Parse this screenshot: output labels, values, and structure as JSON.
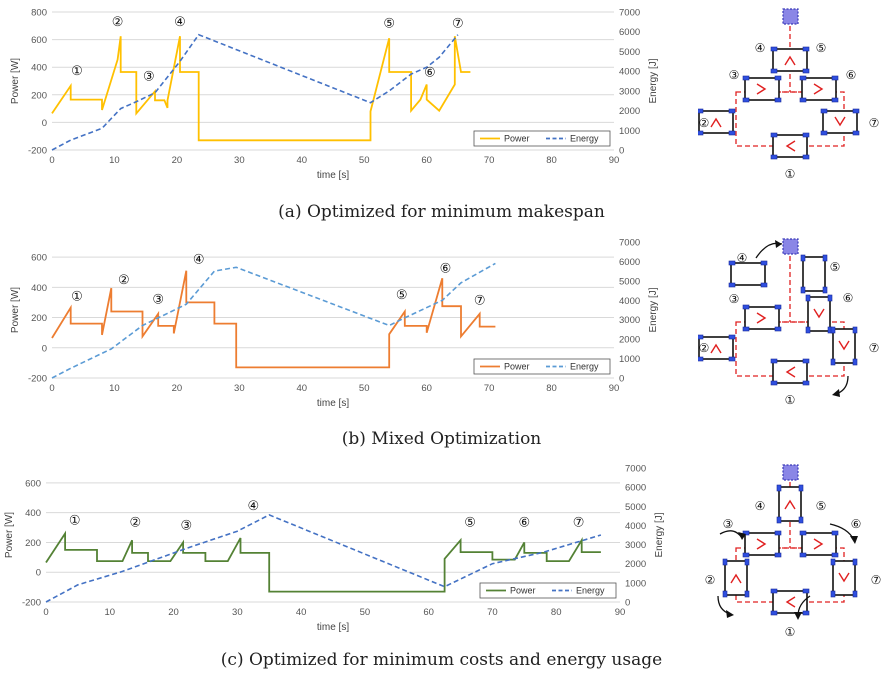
{
  "chart_data": [
    {
      "type": "line",
      "caption": "(a) Optimized for minimum makespan",
      "xlabel": "time [s]",
      "ylabel": "Power [W]",
      "y2label": "Energy [J]",
      "xlim": [
        0,
        90
      ],
      "xticks": [
        0,
        10,
        20,
        30,
        40,
        50,
        60,
        70,
        80,
        90
      ],
      "ylim": [
        -200,
        800
      ],
      "yticks": [
        -200,
        0,
        200,
        400,
        600,
        800
      ],
      "y2lim": [
        0,
        7000
      ],
      "y2ticks": [
        0,
        1000,
        2000,
        3000,
        4000,
        5000,
        6000,
        7000
      ],
      "grid": "horizontal",
      "legend": "bottom-right",
      "series": [
        {
          "name": "Power",
          "axis": "left",
          "color": "#FFC000",
          "dash": "solid",
          "x": [
            0,
            3,
            3,
            8,
            8,
            10.5,
            11,
            11,
            13.5,
            13.5,
            16.5,
            16.5,
            18,
            18.5,
            18.5,
            20.5,
            20.5,
            23.5,
            23.5,
            51,
            51,
            54,
            54,
            57.5,
            57.5,
            59,
            60,
            60,
            62,
            64.5,
            64.5,
            65.5,
            65.5,
            67
          ],
          "y": [
            65,
            265,
            165,
            165,
            90,
            455,
            625,
            365,
            365,
            65,
            225,
            160,
            160,
            105,
            160,
            625,
            365,
            365,
            -130,
            -130,
            80,
            610,
            365,
            365,
            85,
            165,
            275,
            165,
            85,
            275,
            625,
            365,
            365,
            365
          ]
        },
        {
          "name": "Energy",
          "axis": "right",
          "color": "#4472C4",
          "dash": "dashed",
          "x": [
            0,
            3,
            8,
            11,
            13.5,
            16.5,
            20.5,
            23.5,
            51,
            54,
            57.5,
            60,
            62,
            65
          ],
          "y": [
            0,
            500,
            1100,
            2100,
            2450,
            2900,
            4500,
            5850,
            2400,
            3000,
            3850,
            4200,
            4700,
            5850
          ]
        }
      ],
      "annotations": [
        {
          "label": "①",
          "x": 4,
          "y": 380
        },
        {
          "label": "②",
          "x": 10.5,
          "y": 735
        },
        {
          "label": "③",
          "x": 15.5,
          "y": 340
        },
        {
          "label": "④",
          "x": 20.5,
          "y": 735
        },
        {
          "label": "⑤",
          "x": 54,
          "y": 725
        },
        {
          "label": "⑥",
          "x": 60.5,
          "y": 370
        },
        {
          "label": "⑦",
          "x": 65,
          "y": 725
        }
      ]
    },
    {
      "type": "line",
      "caption": "(b) Mixed Optimization",
      "xlabel": "time [s]",
      "ylabel": "Power [W]",
      "y2label": "Energy [J]",
      "xlim": [
        0,
        90
      ],
      "xticks": [
        0,
        10,
        20,
        30,
        40,
        50,
        60,
        70,
        80,
        90
      ],
      "ylim": [
        -200,
        700
      ],
      "yticks": [
        -200,
        0,
        200,
        400,
        600
      ],
      "y2lim": [
        0,
        7000
      ],
      "y2ticks": [
        0,
        1000,
        2000,
        3000,
        4000,
        5000,
        6000,
        7000
      ],
      "grid": "horizontal",
      "legend": "bottom-right",
      "series": [
        {
          "name": "Power",
          "axis": "left",
          "color": "#ED7D31",
          "dash": "solid",
          "x": [
            0,
            3,
            3,
            8,
            8,
            9.5,
            9.5,
            14.5,
            14.5,
            17,
            17,
            19.5,
            19.5,
            21.5,
            21.5,
            26,
            26,
            29.5,
            29.5,
            54,
            54,
            56.5,
            56.5,
            60,
            60,
            62.5,
            62.5,
            65.5,
            65.5,
            68.5,
            68.5,
            71
          ],
          "y": [
            65,
            265,
            160,
            160,
            85,
            395,
            240,
            240,
            75,
            225,
            145,
            145,
            95,
            510,
            300,
            300,
            160,
            160,
            -130,
            -130,
            90,
            240,
            145,
            145,
            100,
            460,
            275,
            275,
            75,
            225,
            140,
            140
          ]
        },
        {
          "name": "Energy",
          "axis": "right",
          "color": "#5B9BD5",
          "dash": "dashed",
          "x": [
            0,
            3,
            9.5,
            14.5,
            21.5,
            26,
            29.5,
            54,
            56.5,
            62.5,
            65.5,
            71
          ],
          "y": [
            0,
            500,
            1500,
            2700,
            3800,
            5500,
            5700,
            2700,
            3100,
            4000,
            4900,
            5900
          ]
        }
      ],
      "annotations": [
        {
          "label": "①",
          "x": 4,
          "y": 345
        },
        {
          "label": "②",
          "x": 11.5,
          "y": 455
        },
        {
          "label": "③",
          "x": 17,
          "y": 325
        },
        {
          "label": "④",
          "x": 23.5,
          "y": 590
        },
        {
          "label": "⑤",
          "x": 56,
          "y": 355
        },
        {
          "label": "⑥",
          "x": 63,
          "y": 530
        },
        {
          "label": "⑦",
          "x": 68.5,
          "y": 320
        }
      ]
    },
    {
      "type": "line",
      "caption": "(c) Optimized for minimum costs and energy usage",
      "xlabel": "time [s]",
      "ylabel": "Power [W]",
      "y2label": "Energy [J]",
      "xlim": [
        0,
        90
      ],
      "xticks": [
        0,
        10,
        20,
        30,
        40,
        50,
        60,
        70,
        80,
        90
      ],
      "ylim": [
        -200,
        700
      ],
      "yticks": [
        -200,
        0,
        200,
        400,
        600
      ],
      "y2lim": [
        0,
        7000
      ],
      "y2ticks": [
        0,
        1000,
        2000,
        3000,
        4000,
        5000,
        6000,
        7000
      ],
      "grid": "horizontal",
      "legend": "bottom-right",
      "series": [
        {
          "name": "Power",
          "axis": "left",
          "color": "#548235",
          "dash": "solid",
          "x": [
            0,
            3,
            3,
            8,
            8,
            12,
            13.5,
            13.5,
            16,
            16,
            19.5,
            21.5,
            21.5,
            25,
            25,
            28.5,
            30.5,
            30.5,
            35,
            35,
            62.5,
            62.5,
            65,
            65,
            70,
            70,
            73.5,
            75,
            75,
            78.5,
            78.5,
            82,
            84,
            84,
            87
          ],
          "y": [
            65,
            260,
            150,
            150,
            75,
            75,
            215,
            130,
            130,
            75,
            75,
            200,
            130,
            130,
            75,
            75,
            230,
            130,
            130,
            -130,
            -130,
            90,
            215,
            135,
            135,
            85,
            85,
            200,
            130,
            130,
            75,
            75,
            215,
            135,
            135
          ]
        },
        {
          "name": "Energy",
          "axis": "right",
          "color": "#4472C4",
          "dash": "dashed",
          "x": [
            0,
            5,
            12,
            22,
            30,
            35,
            62.5,
            70,
            78,
            87
          ],
          "y": [
            0,
            900,
            1600,
            2800,
            3700,
            4550,
            800,
            2000,
            2600,
            3500
          ]
        }
      ],
      "annotations": [
        {
          "label": "①",
          "x": 4.5,
          "y": 355
        },
        {
          "label": "②",
          "x": 14,
          "y": 340
        },
        {
          "label": "③",
          "x": 22,
          "y": 320
        },
        {
          "label": "④",
          "x": 32.5,
          "y": 450
        },
        {
          "label": "⑤",
          "x": 66.5,
          "y": 340
        },
        {
          "label": "⑥",
          "x": 75,
          "y": 340
        },
        {
          "label": "⑦",
          "x": 83.5,
          "y": 340
        }
      ]
    }
  ],
  "schematic": {
    "labels": [
      "①",
      "②",
      "③",
      "④",
      "⑤",
      "⑥",
      "⑦"
    ],
    "colors": {
      "vehicle_outline": "#111111",
      "vehicle_side": "#2F4FE0",
      "path": "#E02020",
      "target": "#8A86E6"
    }
  }
}
